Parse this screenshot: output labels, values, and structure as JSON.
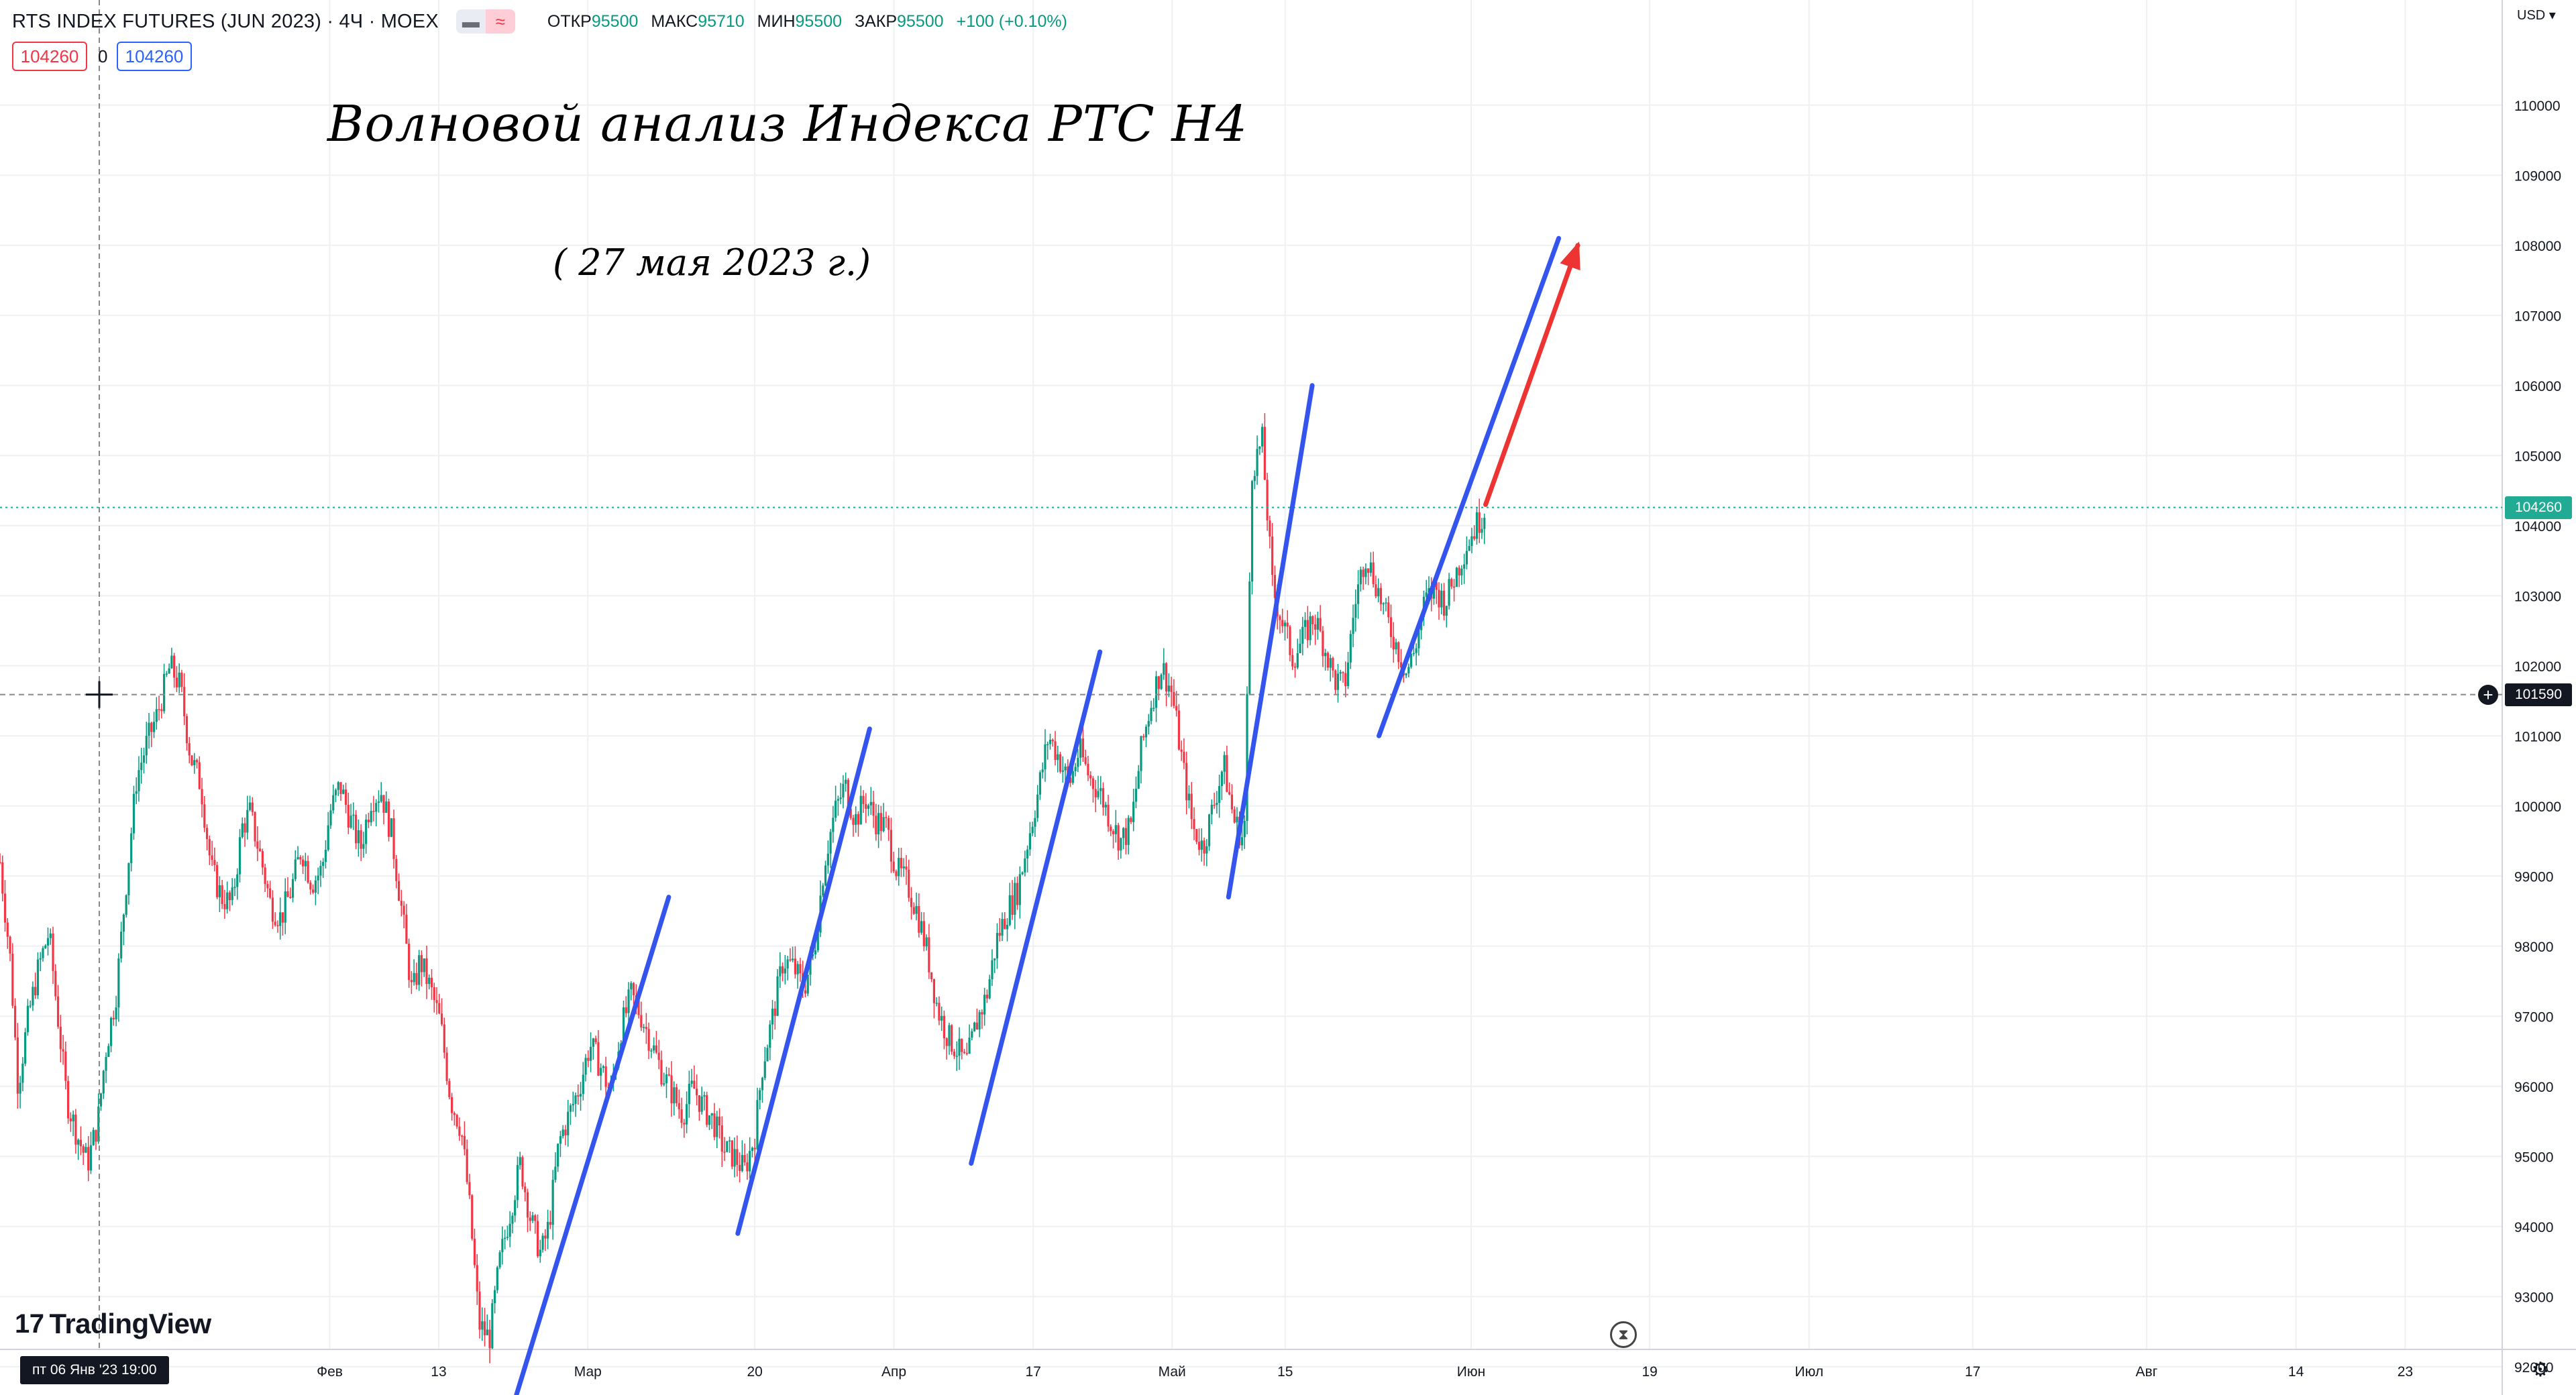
{
  "header": {
    "symbol": "RTS INDEX FUTURES (JUN 2023) · 4Ч · MOEX",
    "toggle_left": "▬",
    "toggle_right": "≈",
    "ohlc": {
      "open_label": "ОТКР",
      "open_value": "95500",
      "high_label": "МАКС",
      "high_value": "95710",
      "low_label": "МИН",
      "low_value": "95500",
      "close_label": "ЗАКР",
      "close_value": "95500",
      "change": "+100 (+0.10%)"
    },
    "bid": "104260",
    "spread": "0",
    "ask": "104260",
    "currency": "USD ▾"
  },
  "annotations": {
    "title": "Волновой анализ Индекса РТС H4",
    "date": "( 27 мая 2023 г.)"
  },
  "branding": {
    "logo_mark": "17",
    "name": "TradingView"
  },
  "crosshair": {
    "time_label": "пт 06 Янв '23  19:00",
    "price_label": "101590",
    "price": 101590
  },
  "last_price": {
    "label": "104260",
    "price": 104260
  },
  "colors": {
    "up": "#089981",
    "down": "#f23645",
    "wave_line": "#3355ee",
    "target_arrow": "#ee3333",
    "last_price_line": "#22ab94",
    "grid": "#eef0f4"
  },
  "chart_data": {
    "type": "candlestick",
    "title": "",
    "xlabel": "",
    "ylabel": "",
    "currency": "USD",
    "timeframe": "4Ч",
    "ylim": [
      91500,
      111000
    ],
    "grid": true,
    "y_ticks": [
      "92000",
      "93000",
      "94000",
      "95000",
      "96000",
      "97000",
      "98000",
      "99000",
      "100000",
      "101000",
      "102000",
      "103000",
      "104000",
      "105000",
      "106000",
      "107000",
      "108000",
      "109000",
      "110000"
    ],
    "x_ticks": [
      {
        "label": "Фев",
        "pos": 0.128
      },
      {
        "label": "13",
        "pos": 0.1703
      },
      {
        "label": "Мар",
        "pos": 0.2282
      },
      {
        "label": "20",
        "pos": 0.293
      },
      {
        "label": "Апр",
        "pos": 0.347
      },
      {
        "label": "17",
        "pos": 0.4011
      },
      {
        "label": "Май",
        "pos": 0.455
      },
      {
        "label": "15",
        "pos": 0.4989
      },
      {
        "label": "Июн",
        "pos": 0.5711
      },
      {
        "label": "19",
        "pos": 0.6404
      },
      {
        "label": "Июл",
        "pos": 0.7023
      },
      {
        "label": "17",
        "pos": 0.7658
      },
      {
        "label": "Авг",
        "pos": 0.8333
      },
      {
        "label": "14",
        "pos": 0.8913
      },
      {
        "label": "23",
        "pos": 0.9337
      }
    ],
    "price_path": [
      [
        0.0,
        99200
      ],
      [
        0.004,
        97800
      ],
      [
        0.007,
        96000
      ],
      [
        0.011,
        97000
      ],
      [
        0.015,
        97700
      ],
      [
        0.019,
        98200
      ],
      [
        0.023,
        96800
      ],
      [
        0.026,
        95800
      ],
      [
        0.03,
        95300
      ],
      [
        0.034,
        94900
      ],
      [
        0.038,
        95500
      ],
      [
        0.041,
        96500
      ],
      [
        0.045,
        97300
      ],
      [
        0.049,
        98900
      ],
      [
        0.053,
        100400
      ],
      [
        0.057,
        100900
      ],
      [
        0.061,
        101300
      ],
      [
        0.066,
        102000
      ],
      [
        0.07,
        101700
      ],
      [
        0.074,
        100700
      ],
      [
        0.078,
        100300
      ],
      [
        0.082,
        99100
      ],
      [
        0.086,
        98700
      ],
      [
        0.09,
        98600
      ],
      [
        0.094,
        99700
      ],
      [
        0.097,
        99900
      ],
      [
        0.101,
        99300
      ],
      [
        0.105,
        98600
      ],
      [
        0.109,
        98400
      ],
      [
        0.113,
        98800
      ],
      [
        0.117,
        99400
      ],
      [
        0.121,
        98900
      ],
      [
        0.125,
        99100
      ],
      [
        0.128,
        99900
      ],
      [
        0.132,
        100300
      ],
      [
        0.136,
        99800
      ],
      [
        0.14,
        99400
      ],
      [
        0.144,
        100100
      ],
      [
        0.148,
        100200
      ],
      [
        0.152,
        99600
      ],
      [
        0.156,
        98500
      ],
      [
        0.16,
        97300
      ],
      [
        0.163,
        97800
      ],
      [
        0.167,
        97400
      ],
      [
        0.171,
        96900
      ],
      [
        0.175,
        95800
      ],
      [
        0.179,
        95400
      ],
      [
        0.182,
        94400
      ],
      [
        0.186,
        92600
      ],
      [
        0.19,
        92400
      ],
      [
        0.194,
        93500
      ],
      [
        0.198,
        94200
      ],
      [
        0.202,
        94900
      ],
      [
        0.206,
        94100
      ],
      [
        0.21,
        93600
      ],
      [
        0.213,
        94000
      ],
      [
        0.217,
        95200
      ],
      [
        0.221,
        95600
      ],
      [
        0.225,
        96000
      ],
      [
        0.229,
        96600
      ],
      [
        0.233,
        96300
      ],
      [
        0.237,
        95900
      ],
      [
        0.241,
        96800
      ],
      [
        0.245,
        97300
      ],
      [
        0.249,
        97000
      ],
      [
        0.253,
        96600
      ],
      [
        0.257,
        96200
      ],
      [
        0.261,
        95900
      ],
      [
        0.265,
        95600
      ],
      [
        0.269,
        96000
      ],
      [
        0.273,
        95700
      ],
      [
        0.277,
        95500
      ],
      [
        0.281,
        95100
      ],
      [
        0.285,
        95000
      ],
      [
        0.289,
        94800
      ],
      [
        0.293,
        95300
      ],
      [
        0.296,
        96300
      ],
      [
        0.3,
        97000
      ],
      [
        0.304,
        97800
      ],
      [
        0.308,
        97700
      ],
      [
        0.312,
        97400
      ],
      [
        0.316,
        97900
      ],
      [
        0.32,
        99200
      ],
      [
        0.324,
        99900
      ],
      [
        0.328,
        100300
      ],
      [
        0.332,
        99800
      ],
      [
        0.336,
        100100
      ],
      [
        0.34,
        99800
      ],
      [
        0.344,
        99700
      ],
      [
        0.348,
        99100
      ],
      [
        0.352,
        98900
      ],
      [
        0.356,
        98500
      ],
      [
        0.36,
        97900
      ],
      [
        0.364,
        97100
      ],
      [
        0.368,
        96700
      ],
      [
        0.372,
        96500
      ],
      [
        0.375,
        96300
      ],
      [
        0.379,
        96900
      ],
      [
        0.383,
        97300
      ],
      [
        0.387,
        98100
      ],
      [
        0.391,
        98500
      ],
      [
        0.395,
        98800
      ],
      [
        0.399,
        99500
      ],
      [
        0.403,
        100200
      ],
      [
        0.407,
        101000
      ],
      [
        0.411,
        100700
      ],
      [
        0.415,
        100300
      ],
      [
        0.419,
        100800
      ],
      [
        0.423,
        100400
      ],
      [
        0.427,
        100200
      ],
      [
        0.431,
        99800
      ],
      [
        0.435,
        99500
      ],
      [
        0.439,
        99700
      ],
      [
        0.443,
        100800
      ],
      [
        0.447,
        101500
      ],
      [
        0.451,
        102000
      ],
      [
        0.455,
        101600
      ],
      [
        0.459,
        100600
      ],
      [
        0.463,
        99700
      ],
      [
        0.467,
        99400
      ],
      [
        0.471,
        100000
      ],
      [
        0.475,
        100600
      ],
      [
        0.479,
        99800
      ],
      [
        0.483,
        99500
      ],
      [
        0.486,
        104800
      ],
      [
        0.49,
        105200
      ],
      [
        0.494,
        103100
      ],
      [
        0.498,
        102600
      ],
      [
        0.502,
        102100
      ],
      [
        0.506,
        102400
      ],
      [
        0.51,
        102700
      ],
      [
        0.514,
        102300
      ],
      [
        0.518,
        101800
      ],
      [
        0.522,
        101700
      ],
      [
        0.526,
        102900
      ],
      [
        0.53,
        103600
      ],
      [
        0.534,
        103200
      ],
      [
        0.538,
        102700
      ],
      [
        0.542,
        102300
      ],
      [
        0.546,
        101900
      ],
      [
        0.549,
        102200
      ],
      [
        0.553,
        102900
      ],
      [
        0.557,
        103100
      ],
      [
        0.561,
        102900
      ],
      [
        0.565,
        103300
      ],
      [
        0.569,
        103700
      ],
      [
        0.573,
        104000
      ],
      [
        0.577,
        104260
      ]
    ],
    "wave_lines": [
      [
        [
          0.2005,
          91600
        ],
        [
          0.2596,
          98700
        ]
      ],
      [
        [
          0.2864,
          93900
        ],
        [
          0.3376,
          101100
        ]
      ],
      [
        [
          0.377,
          94900
        ],
        [
          0.427,
          102200
        ]
      ],
      [
        [
          0.4769,
          98700
        ],
        [
          0.5094,
          106000
        ]
      ],
      [
        [
          0.5353,
          101000
        ],
        [
          0.6051,
          108100
        ]
      ]
    ],
    "target_arrow": [
      [
        0.5767,
        104300
      ],
      [
        0.6125,
        108000
      ]
    ],
    "last_price": 104260,
    "crosshair_price": 101590
  }
}
